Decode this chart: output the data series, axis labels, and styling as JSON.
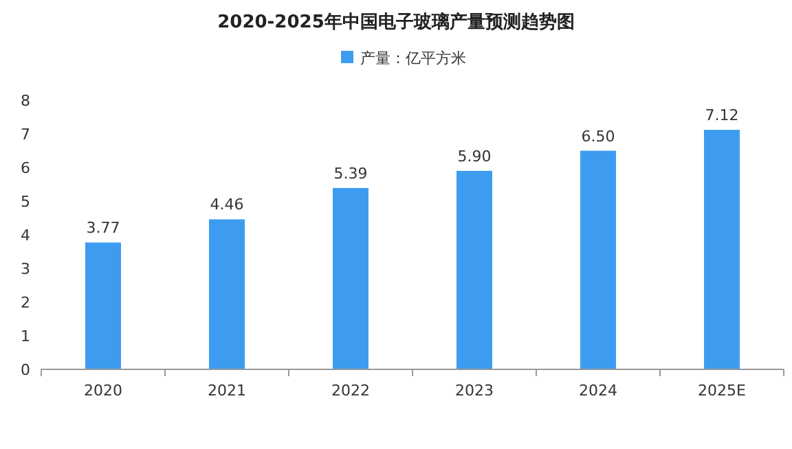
{
  "chart_data": {
    "type": "bar",
    "title": "2020-2025年中国电子玻璃产量预测趋势图",
    "categories": [
      "2020",
      "2021",
      "2022",
      "2023",
      "2024",
      "2025E"
    ],
    "series": [
      {
        "name": "产量：亿平方米",
        "color": "#3d9cf0",
        "values": [
          3.77,
          4.46,
          5.39,
          5.9,
          6.5,
          7.12
        ],
        "value_labels": [
          "3.77",
          "4.46",
          "5.39",
          "5.90",
          "6.50",
          "7.12"
        ]
      }
    ],
    "ylim": [
      0,
      8
    ],
    "yticks": [
      0,
      1,
      2,
      3,
      4,
      5,
      6,
      7,
      8
    ],
    "legend": "top",
    "grid": false
  }
}
